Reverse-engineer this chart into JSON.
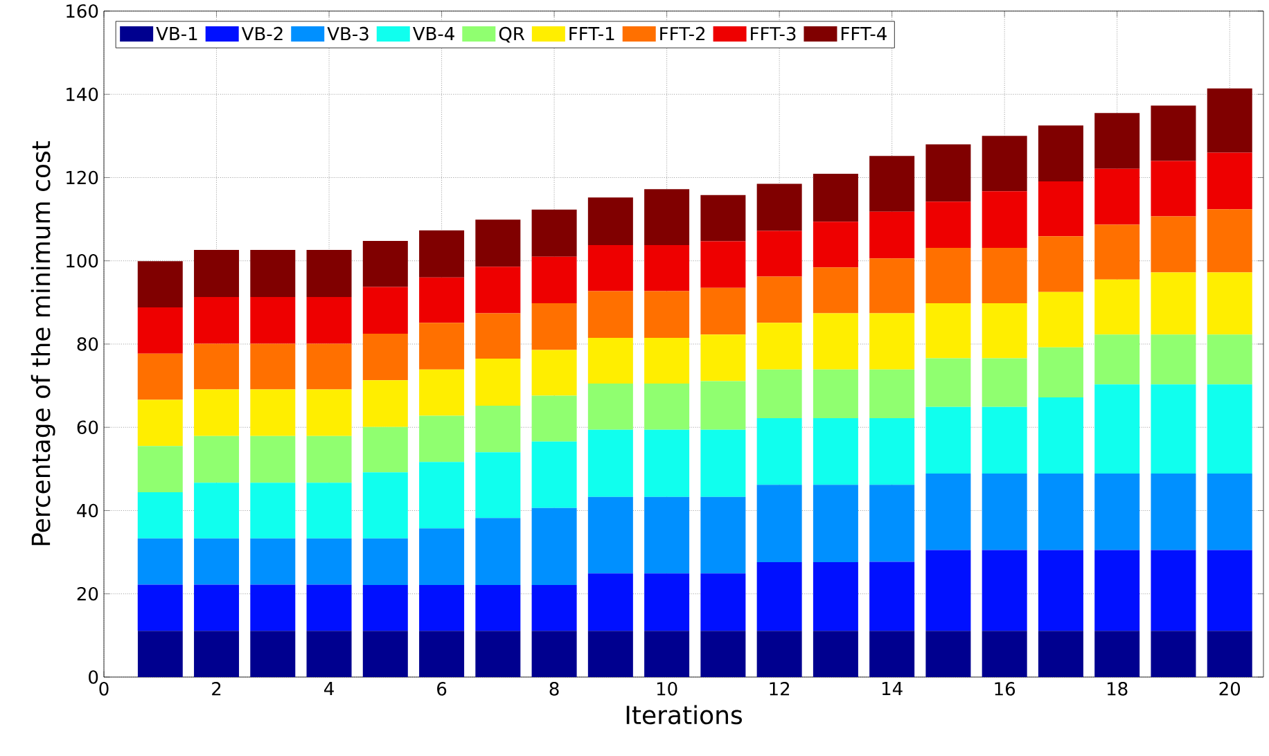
{
  "chart_data": {
    "type": "bar",
    "stacked": true,
    "xlabel": "Iterations",
    "ylabel": "Percentage of the minimum cost",
    "x": [
      1,
      2,
      3,
      4,
      5,
      6,
      7,
      8,
      9,
      10,
      11,
      12,
      13,
      14,
      15,
      16,
      17,
      18,
      19,
      20
    ],
    "xlim": [
      0,
      20.6
    ],
    "xticks": [
      0,
      2,
      4,
      6,
      8,
      10,
      12,
      14,
      16,
      18,
      20
    ],
    "ylim": [
      0,
      160
    ],
    "yticks": [
      0,
      20,
      40,
      60,
      80,
      100,
      120,
      140,
      160
    ],
    "grid": true,
    "legend": "top left",
    "series": [
      {
        "name": "VB-1",
        "color": "#00008f",
        "values": [
          11.1,
          11.1,
          11.1,
          11.1,
          11.1,
          11.1,
          11.1,
          11.1,
          11.1,
          11.1,
          11.1,
          11.1,
          11.1,
          11.1,
          11.1,
          11.1,
          11.1,
          11.1,
          11.1,
          11.1
        ]
      },
      {
        "name": "VB-2",
        "color": "#0010ff",
        "values": [
          11.1,
          11.1,
          11.1,
          11.1,
          11.0,
          11.0,
          11.0,
          11.0,
          13.8,
          13.8,
          13.8,
          16.5,
          16.5,
          16.6,
          19.4,
          19.4,
          19.4,
          19.4,
          19.4,
          19.4
        ]
      },
      {
        "name": "VB-3",
        "color": "#0090ff",
        "values": [
          11.1,
          11.1,
          11.1,
          11.1,
          11.2,
          13.6,
          16.1,
          18.5,
          18.4,
          18.4,
          18.4,
          18.6,
          18.6,
          18.5,
          18.4,
          18.4,
          18.4,
          18.4,
          18.4,
          18.4
        ]
      },
      {
        "name": "VB-4",
        "color": "#10ffee",
        "values": [
          11.1,
          13.4,
          13.4,
          13.4,
          15.9,
          16.0,
          15.8,
          16.0,
          16.1,
          16.1,
          16.1,
          16.0,
          16.0,
          16.0,
          16.0,
          16.0,
          18.3,
          21.4,
          21.4,
          21.4
        ]
      },
      {
        "name": "QR",
        "color": "#90ff70",
        "values": [
          11.1,
          11.2,
          11.2,
          11.2,
          10.9,
          11.1,
          11.2,
          11.0,
          11.1,
          11.1,
          11.7,
          11.7,
          11.7,
          11.7,
          11.7,
          11.7,
          12.0,
          12.0,
          12.0,
          12.0
        ]
      },
      {
        "name": "FFT-1",
        "color": "#ffee00",
        "values": [
          11.1,
          11.2,
          11.2,
          11.2,
          11.2,
          11.1,
          11.3,
          11.0,
          11.0,
          11.0,
          11.2,
          11.2,
          13.5,
          13.5,
          13.2,
          13.2,
          13.3,
          13.2,
          14.9,
          14.9
        ]
      },
      {
        "name": "FFT-2",
        "color": "#ff7000",
        "values": [
          11.1,
          11.0,
          11.0,
          11.0,
          11.2,
          11.2,
          10.9,
          11.2,
          11.2,
          11.2,
          11.2,
          11.1,
          11.0,
          13.2,
          13.3,
          13.3,
          13.4,
          13.2,
          13.5,
          15.2
        ]
      },
      {
        "name": "FFT-3",
        "color": "#ee0000",
        "values": [
          11.1,
          11.2,
          11.2,
          11.2,
          11.2,
          10.9,
          11.2,
          11.2,
          11.1,
          11.1,
          11.2,
          11.0,
          11.0,
          11.2,
          11.1,
          13.6,
          13.2,
          13.4,
          13.3,
          13.6
        ]
      },
      {
        "name": "FFT-4",
        "color": "#800000",
        "values": [
          11.1,
          11.3,
          11.3,
          11.3,
          11.1,
          11.3,
          11.3,
          11.3,
          11.4,
          13.4,
          11.1,
          11.3,
          11.5,
          13.4,
          13.8,
          13.3,
          13.4,
          13.4,
          13.3,
          15.4
        ]
      }
    ]
  }
}
